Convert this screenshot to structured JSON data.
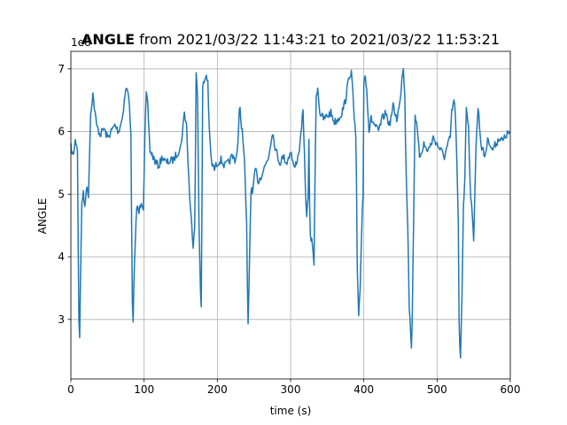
{
  "chart_data": {
    "type": "line",
    "title": {
      "bold_part": "ANGLE",
      "rest": " from 2021/03/22 11:43:21 to 2021/03/22 11:53:21"
    },
    "offset_label": "1e6",
    "xlabel": "time (s)",
    "ylabel": "ANGLE",
    "xlim": [
      0,
      600
    ],
    "ylim": [
      2.05,
      7.28
    ],
    "xticks": [
      0,
      100,
      200,
      300,
      400,
      500,
      600
    ],
    "xtick_labels": [
      "0",
      "100",
      "200",
      "300",
      "400",
      "500",
      "600"
    ],
    "yticks": [
      3,
      4,
      5,
      6,
      7
    ],
    "ytick_labels": [
      "3",
      "4",
      "5",
      "6",
      "7"
    ],
    "grid": true,
    "series": [
      {
        "color": "#1f77b4",
        "x": [
          0,
          3,
          6,
          8,
          9,
          10,
          11,
          12,
          13,
          15,
          17,
          19,
          21,
          24,
          27,
          30,
          35,
          40,
          45,
          50,
          55,
          60,
          65,
          70,
          74,
          76,
          78,
          80,
          81,
          82,
          83,
          84,
          85,
          86,
          88,
          90,
          93,
          96,
          99,
          101,
          103,
          105,
          108,
          112,
          116,
          120,
          125,
          130,
          140,
          150,
          155,
          158,
          160,
          163,
          165,
          167,
          169,
          170,
          171,
          172,
          173,
          175,
          177,
          178,
          179,
          180,
          182,
          185,
          187,
          189,
          192,
          196,
          200,
          205,
          210,
          215,
          220,
          225,
          228,
          230,
          231,
          233,
          235,
          237,
          238,
          240,
          241,
          242,
          244,
          246,
          248,
          252,
          256,
          260,
          265,
          270,
          275,
          280,
          285,
          290,
          295,
          300,
          305,
          310,
          313,
          315,
          317,
          320,
          322,
          324,
          325,
          326,
          327,
          330,
          332,
          334,
          335,
          337,
          340,
          345,
          350,
          355,
          360,
          365,
          370,
          375,
          380,
          383,
          385,
          387,
          389,
          390,
          391,
          393,
          395,
          397,
          398,
          399,
          400,
          402,
          404,
          407,
          410,
          415,
          420,
          425,
          430,
          435,
          440,
          445,
          450,
          452,
          454,
          456,
          457,
          458,
          460,
          462,
          464,
          465,
          466,
          467,
          468,
          470,
          473,
          476,
          479,
          482,
          486,
          490,
          495,
          500,
          505,
          510,
          515,
          518,
          520,
          523,
          525,
          527,
          529,
          530,
          531,
          532,
          534,
          536,
          538,
          540,
          543,
          545,
          547,
          550,
          553,
          556,
          560,
          565,
          570,
          575,
          580,
          585,
          590,
          595,
          600
        ],
        "y": [
          5.75,
          5.6,
          5.85,
          5.8,
          5.7,
          4.2,
          3.0,
          2.75,
          3.5,
          4.9,
          5.0,
          4.8,
          5.1,
          5.0,
          6.3,
          6.6,
          6.1,
          5.95,
          6.05,
          5.9,
          6.0,
          6.1,
          6.0,
          6.2,
          6.6,
          6.7,
          6.6,
          6.45,
          6.2,
          5.9,
          4.5,
          3.2,
          2.95,
          3.5,
          4.3,
          4.8,
          4.7,
          4.9,
          4.8,
          5.9,
          6.6,
          6.4,
          5.7,
          5.6,
          5.5,
          5.45,
          5.6,
          5.5,
          5.55,
          5.75,
          6.3,
          6.1,
          5.5,
          4.8,
          4.5,
          4.2,
          4.5,
          5.5,
          6.9,
          6.8,
          6.5,
          4.5,
          3.5,
          3.2,
          4.8,
          6.7,
          6.8,
          6.9,
          6.8,
          6.0,
          5.5,
          5.4,
          5.5,
          5.55,
          5.45,
          5.5,
          5.6,
          5.55,
          5.8,
          6.3,
          6.35,
          6.1,
          5.9,
          5.5,
          5.2,
          4.5,
          3.5,
          2.9,
          4.0,
          5.1,
          5.0,
          5.4,
          5.2,
          5.3,
          5.45,
          5.6,
          6.0,
          5.7,
          5.5,
          5.6,
          5.5,
          5.7,
          5.4,
          5.6,
          5.8,
          6.1,
          6.3,
          5.2,
          4.6,
          5.0,
          5.9,
          4.8,
          4.3,
          4.2,
          3.9,
          5.8,
          6.6,
          6.7,
          6.3,
          6.2,
          6.25,
          6.3,
          6.15,
          6.2,
          6.3,
          6.5,
          6.9,
          6.95,
          6.6,
          6.2,
          5.9,
          5.2,
          3.8,
          3.0,
          3.5,
          4.4,
          4.8,
          5.0,
          6.8,
          6.9,
          6.7,
          6.0,
          6.2,
          6.1,
          6.0,
          6.2,
          6.3,
          6.1,
          6.4,
          6.2,
          6.5,
          6.9,
          7.0,
          6.6,
          5.8,
          5.3,
          4.5,
          3.2,
          2.8,
          2.5,
          3.0,
          3.8,
          4.6,
          6.3,
          6.0,
          5.6,
          5.7,
          5.8,
          5.7,
          5.75,
          5.9,
          5.8,
          5.7,
          5.6,
          5.8,
          5.9,
          6.3,
          6.5,
          6.3,
          5.5,
          4.5,
          3.0,
          2.55,
          2.4,
          3.4,
          4.8,
          5.3,
          6.4,
          6.1,
          5.2,
          4.8,
          4.3,
          5.7,
          6.4,
          5.8,
          5.6,
          5.9,
          5.7,
          5.8,
          5.9,
          5.85,
          5.95,
          6.0
        ]
      }
    ]
  }
}
